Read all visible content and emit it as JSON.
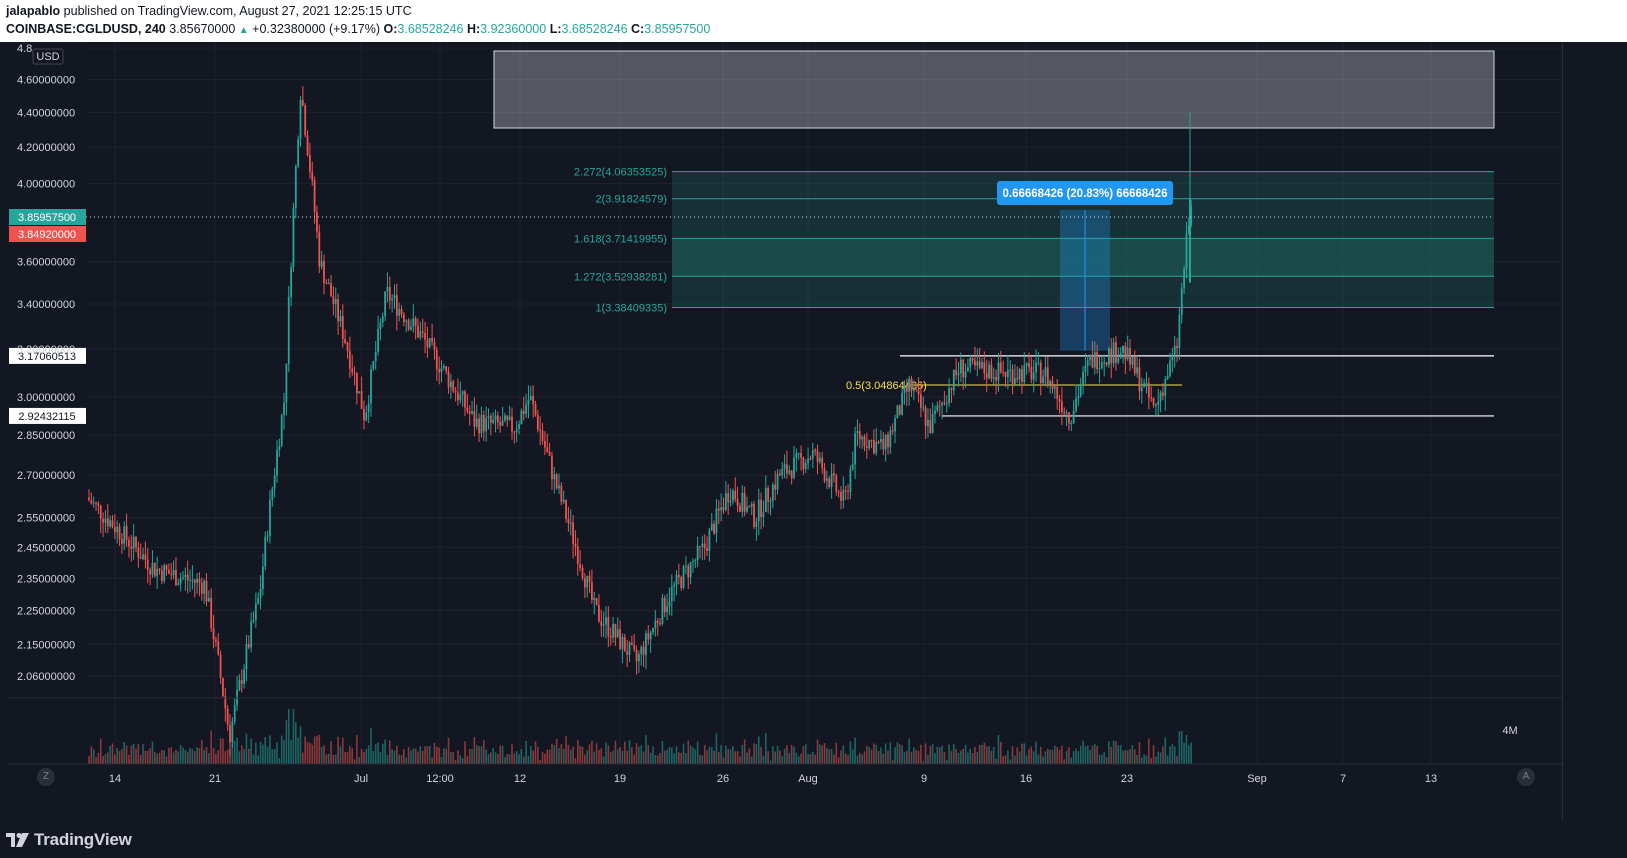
{
  "header": {
    "author": "jalapablo",
    "published": "published on TradingView.com, August 27, 2021 12:25:15 UTC",
    "symbol": "COINBASE:CGLDUSD, 240",
    "last": "3.85670000",
    "change": "+0.32380000 (+9.17%)",
    "o_label": "O:",
    "o_value": "3.68528246",
    "h_label": "H:",
    "h_value": "3.92360000",
    "l_label": "L:",
    "l_value": "3.68528246",
    "c_label": "C:",
    "c_value": "3.85957500"
  },
  "colors": {
    "up": "#26a69a",
    "down": "#ef5350",
    "background": "#131722",
    "fib_fill": "#1f7a6e",
    "measure": "#2196f3",
    "fib_mid": "#f4e04d"
  },
  "chart_data": {
    "type": "candlestick",
    "ylim": [
      2.0,
      4.8
    ],
    "y_scale": "log",
    "y_axis_ticks": [
      "4.8",
      "4.60000000",
      "4.40000000",
      "4.20000000",
      "4.00000000",
      "3.60000000",
      "3.40000000",
      "3.20000000",
      "3.00000000",
      "2.85000000",
      "2.70000000",
      "2.55000000",
      "2.45000000",
      "2.35000000",
      "2.25000000",
      "2.15000000",
      "2.06000000"
    ],
    "currency_label": "USD",
    "x_axis_ticks": [
      "14",
      "21",
      "Jul",
      "12:00",
      "12",
      "19",
      "26",
      "Aug",
      "9",
      "16",
      "23",
      "Sep",
      "7",
      "13"
    ],
    "price_labels": {
      "last": "3.85957500",
      "prev": "3.84920000",
      "upper_line": "3.17060513",
      "lower_line": "2.92432115"
    },
    "fib_levels": [
      {
        "label": "2.272(4.06353525)",
        "value": 4.06353525
      },
      {
        "label": "2(3.91824579)",
        "value": 3.91824579
      },
      {
        "label": "1.618(3.71419955)",
        "value": 3.71419955
      },
      {
        "label": "1.272(3.52938281)",
        "value": 3.52938281
      },
      {
        "label": "1(3.38409335)",
        "value": 3.38409335
      }
    ],
    "fib_mid": {
      "label": "0.5(3.04864406)",
      "value": 3.04864406
    },
    "measure_label": "0.66668426 (20.83%) 66668426",
    "volume_label": "4M",
    "buttons": {
      "z": "Z",
      "a": "A"
    }
  },
  "footer": {
    "brand": "TradingView"
  }
}
